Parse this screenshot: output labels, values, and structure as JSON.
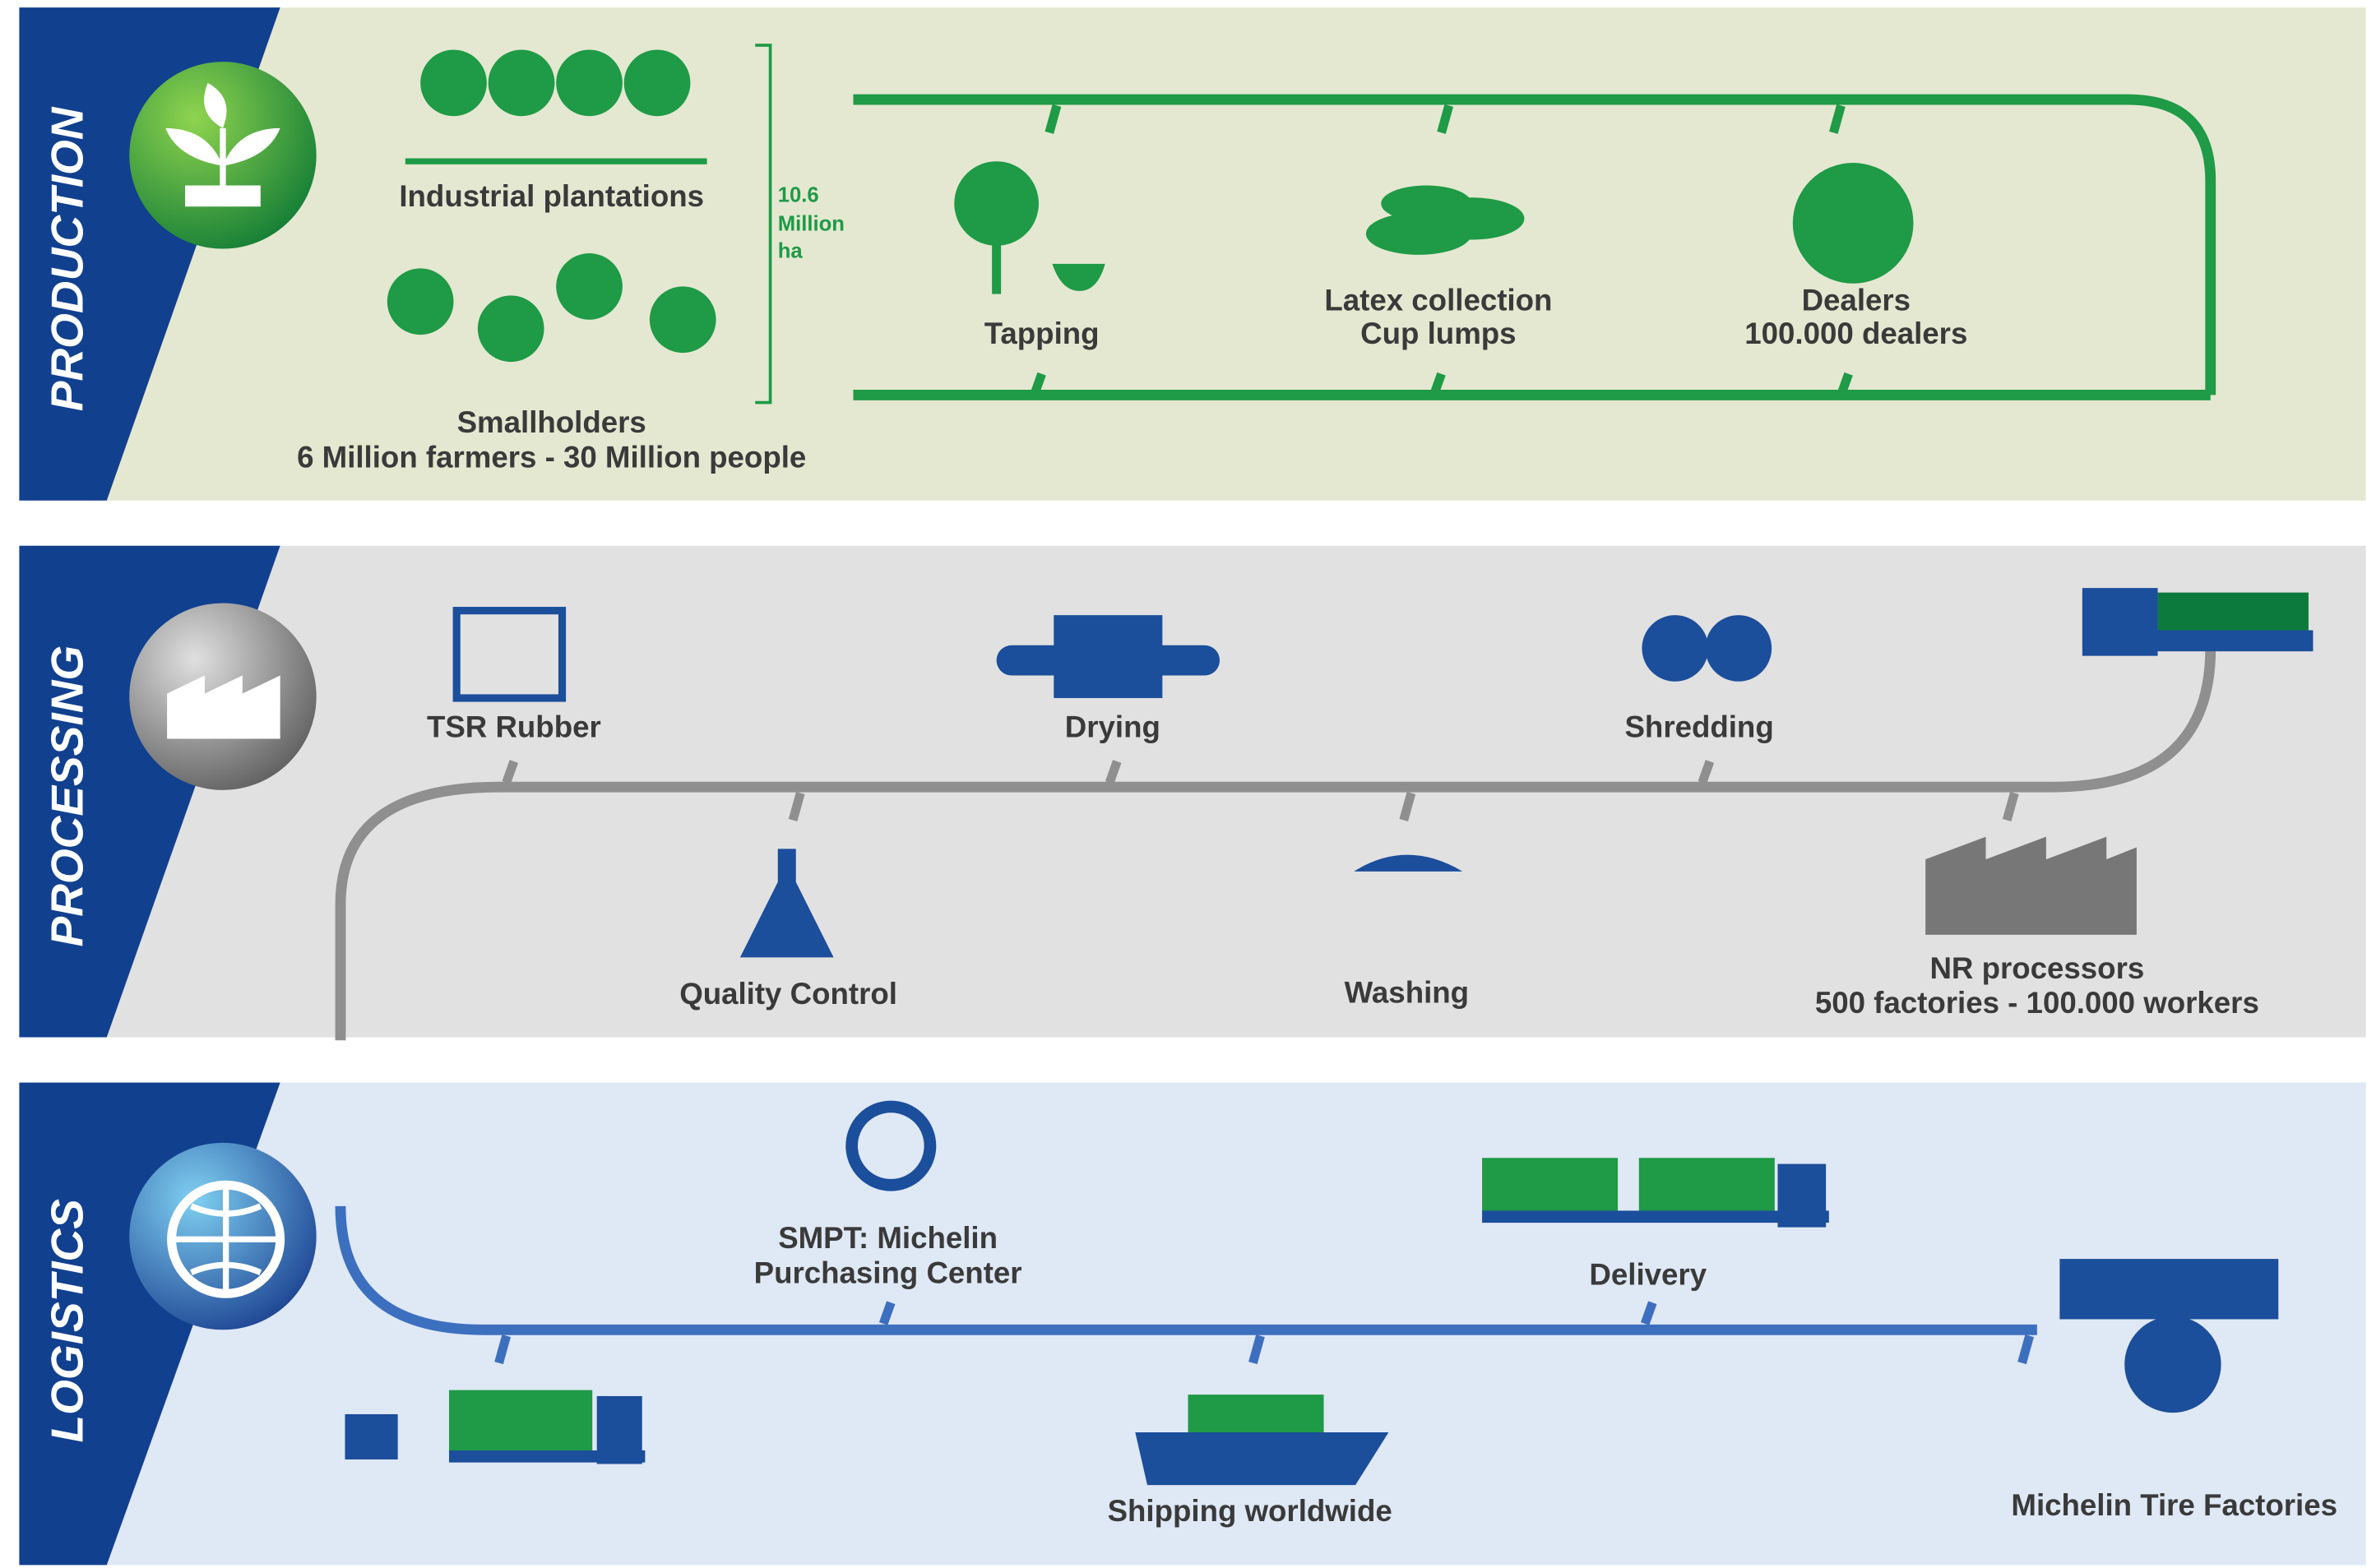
{
  "sections": [
    {
      "title": "PRODUCTION",
      "nodes": [
        {
          "lines": [
            "Industrial plantations"
          ]
        },
        {
          "lines": [
            "Smallholders",
            "6 Million farmers - 30 Million people"
          ]
        },
        {
          "lines": [
            "10.6",
            "Million",
            "ha"
          ]
        },
        {
          "lines": [
            "Tapping"
          ]
        },
        {
          "lines": [
            "Latex collection",
            "Cup lumps"
          ]
        },
        {
          "lines": [
            "Dealers",
            "100.000 dealers"
          ]
        }
      ]
    },
    {
      "title": "PROCESSING",
      "nodes": [
        {
          "lines": [
            "TSR Rubber"
          ]
        },
        {
          "lines": [
            "Drying"
          ]
        },
        {
          "lines": [
            "Shredding"
          ]
        },
        {
          "lines": [
            "Quality Control"
          ]
        },
        {
          "lines": [
            "Washing"
          ]
        },
        {
          "lines": [
            "NR processors",
            "500 factories - 100.000 workers"
          ]
        }
      ]
    },
    {
      "title": "LOGISTICS",
      "nodes": [
        {
          "lines": [
            "SMPT: Michelin",
            "Purchasing Center"
          ]
        },
        {
          "lines": [
            "Delivery"
          ]
        },
        {
          "lines": [
            "Shipping worldwide"
          ]
        },
        {
          "lines": [
            "Michelin Tire Factories"
          ]
        }
      ]
    }
  ]
}
